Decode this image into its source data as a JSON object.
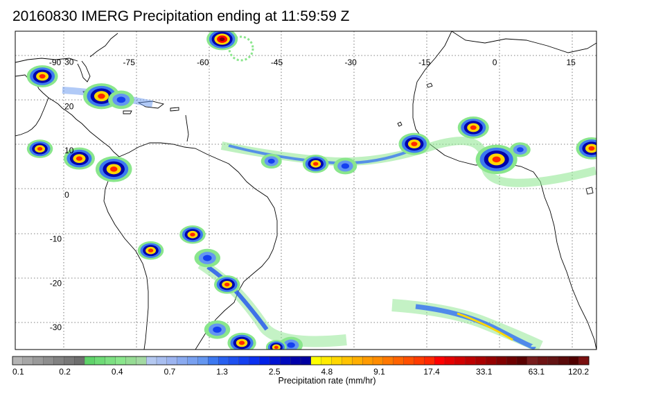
{
  "title": "20160830 IMERG Precipitation ending at 11:59:59 Z",
  "map": {
    "lon_range": [
      -98,
      20
    ],
    "lat_range": [
      -35,
      37
    ],
    "lon_ticks": [
      {
        "value": -90,
        "label": "-90"
      },
      {
        "value": -75,
        "label": "-75"
      },
      {
        "value": -60,
        "label": "-60"
      },
      {
        "value": -45,
        "label": "-45"
      },
      {
        "value": -30,
        "label": "-30"
      },
      {
        "value": -15,
        "label": "-15"
      },
      {
        "value": 0,
        "label": "0"
      },
      {
        "value": 15,
        "label": "15"
      }
    ],
    "lat_ticks": [
      {
        "value": 30,
        "label": "30"
      },
      {
        "value": 20,
        "label": "20"
      },
      {
        "value": 10,
        "label": "10"
      },
      {
        "value": 0,
        "label": "0"
      },
      {
        "value": -10,
        "label": "-10"
      },
      {
        "value": -20,
        "label": "-20"
      },
      {
        "value": -30,
        "label": "-30"
      }
    ],
    "grid": "dotted"
  },
  "colorbar": {
    "title": "Precipitation rate (mm/hr)",
    "colors": [
      "#b4b4b4",
      "#a6a6a6",
      "#9a9a9a",
      "#8e8e8e",
      "#828282",
      "#787878",
      "#6e6e6e",
      "#5fd36a",
      "#6edb76",
      "#7de082",
      "#8ae68c",
      "#96dc94",
      "#a3d9a2",
      "#b4c8f0",
      "#a8bef0",
      "#9cb4f0",
      "#8aaaf0",
      "#78a0f0",
      "#6496f0",
      "#3c78f0",
      "#2860f0",
      "#1e50f0",
      "#1440f0",
      "#0a30f0",
      "#0020e6",
      "#0014d2",
      "#000abe",
      "#0000aa",
      "#0000a0",
      "#ffff00",
      "#ffeb00",
      "#ffd700",
      "#ffc300",
      "#ffaf00",
      "#ff9b00",
      "#ff8c00",
      "#ff7800",
      "#ff6400",
      "#ff5000",
      "#ff3c00",
      "#ff2800",
      "#ff0000",
      "#e60000",
      "#d20000",
      "#be0000",
      "#aa0000",
      "#960000",
      "#820000",
      "#6e0000",
      "#5a0000",
      "#781e1e",
      "#6e1414",
      "#641414",
      "#5a0a0a",
      "#500000",
      "#7a1010"
    ],
    "tick_labels": [
      "0.1",
      "0.2",
      "0.4",
      "0.7",
      "1.3",
      "2.5",
      "4.8",
      "9.1",
      "17.4",
      "33.1",
      "63.1",
      "120.2"
    ]
  },
  "precip_cells": [
    {
      "lon": -92.5,
      "lat": 26.8,
      "r": 1.2,
      "level": "high"
    },
    {
      "lon": -80.5,
      "lat": 22.3,
      "r": 1.4,
      "level": "high"
    },
    {
      "lon": -76.5,
      "lat": 21.5,
      "r": 1.0,
      "level": "med"
    },
    {
      "lon": -56,
      "lat": 35.2,
      "r": 1.2,
      "level": "extreme"
    },
    {
      "lon": -93,
      "lat": 10.4,
      "r": 1.0,
      "level": "high"
    },
    {
      "lon": -85,
      "lat": 8.2,
      "r": 1.2,
      "level": "high"
    },
    {
      "lon": -78,
      "lat": 5.8,
      "r": 1.4,
      "level": "high"
    },
    {
      "lon": -46,
      "lat": 7.6,
      "r": 0.8,
      "level": "med"
    },
    {
      "lon": -37,
      "lat": 7.0,
      "r": 1.0,
      "level": "high"
    },
    {
      "lon": -31,
      "lat": 6.5,
      "r": 0.9,
      "level": "med"
    },
    {
      "lon": -17,
      "lat": 11.5,
      "r": 1.2,
      "level": "high"
    },
    {
      "lon": -5,
      "lat": 15.2,
      "r": 1.2,
      "level": "high"
    },
    {
      "lon": -0.3,
      "lat": 8.0,
      "r": 1.6,
      "level": "high"
    },
    {
      "lon": 4.5,
      "lat": 10.2,
      "r": 0.8,
      "level": "med"
    },
    {
      "lon": 19,
      "lat": 10.5,
      "r": 1.2,
      "level": "high"
    },
    {
      "lon": -70.5,
      "lat": -12.6,
      "r": 1.0,
      "level": "high"
    },
    {
      "lon": -62,
      "lat": -9.0,
      "r": 1.0,
      "level": "high"
    },
    {
      "lon": -59,
      "lat": -14.3,
      "r": 1.0,
      "level": "med"
    },
    {
      "lon": -55,
      "lat": -20.3,
      "r": 1.0,
      "level": "high"
    },
    {
      "lon": -57,
      "lat": -30.5,
      "r": 1.0,
      "level": "med"
    },
    {
      "lon": -52,
      "lat": -33.5,
      "r": 1.1,
      "level": "high"
    },
    {
      "lon": -42,
      "lat": -34.0,
      "r": 0.9,
      "level": "med"
    },
    {
      "lon": -45,
      "lat": -34.5,
      "r": 0.8,
      "level": "high"
    }
  ]
}
